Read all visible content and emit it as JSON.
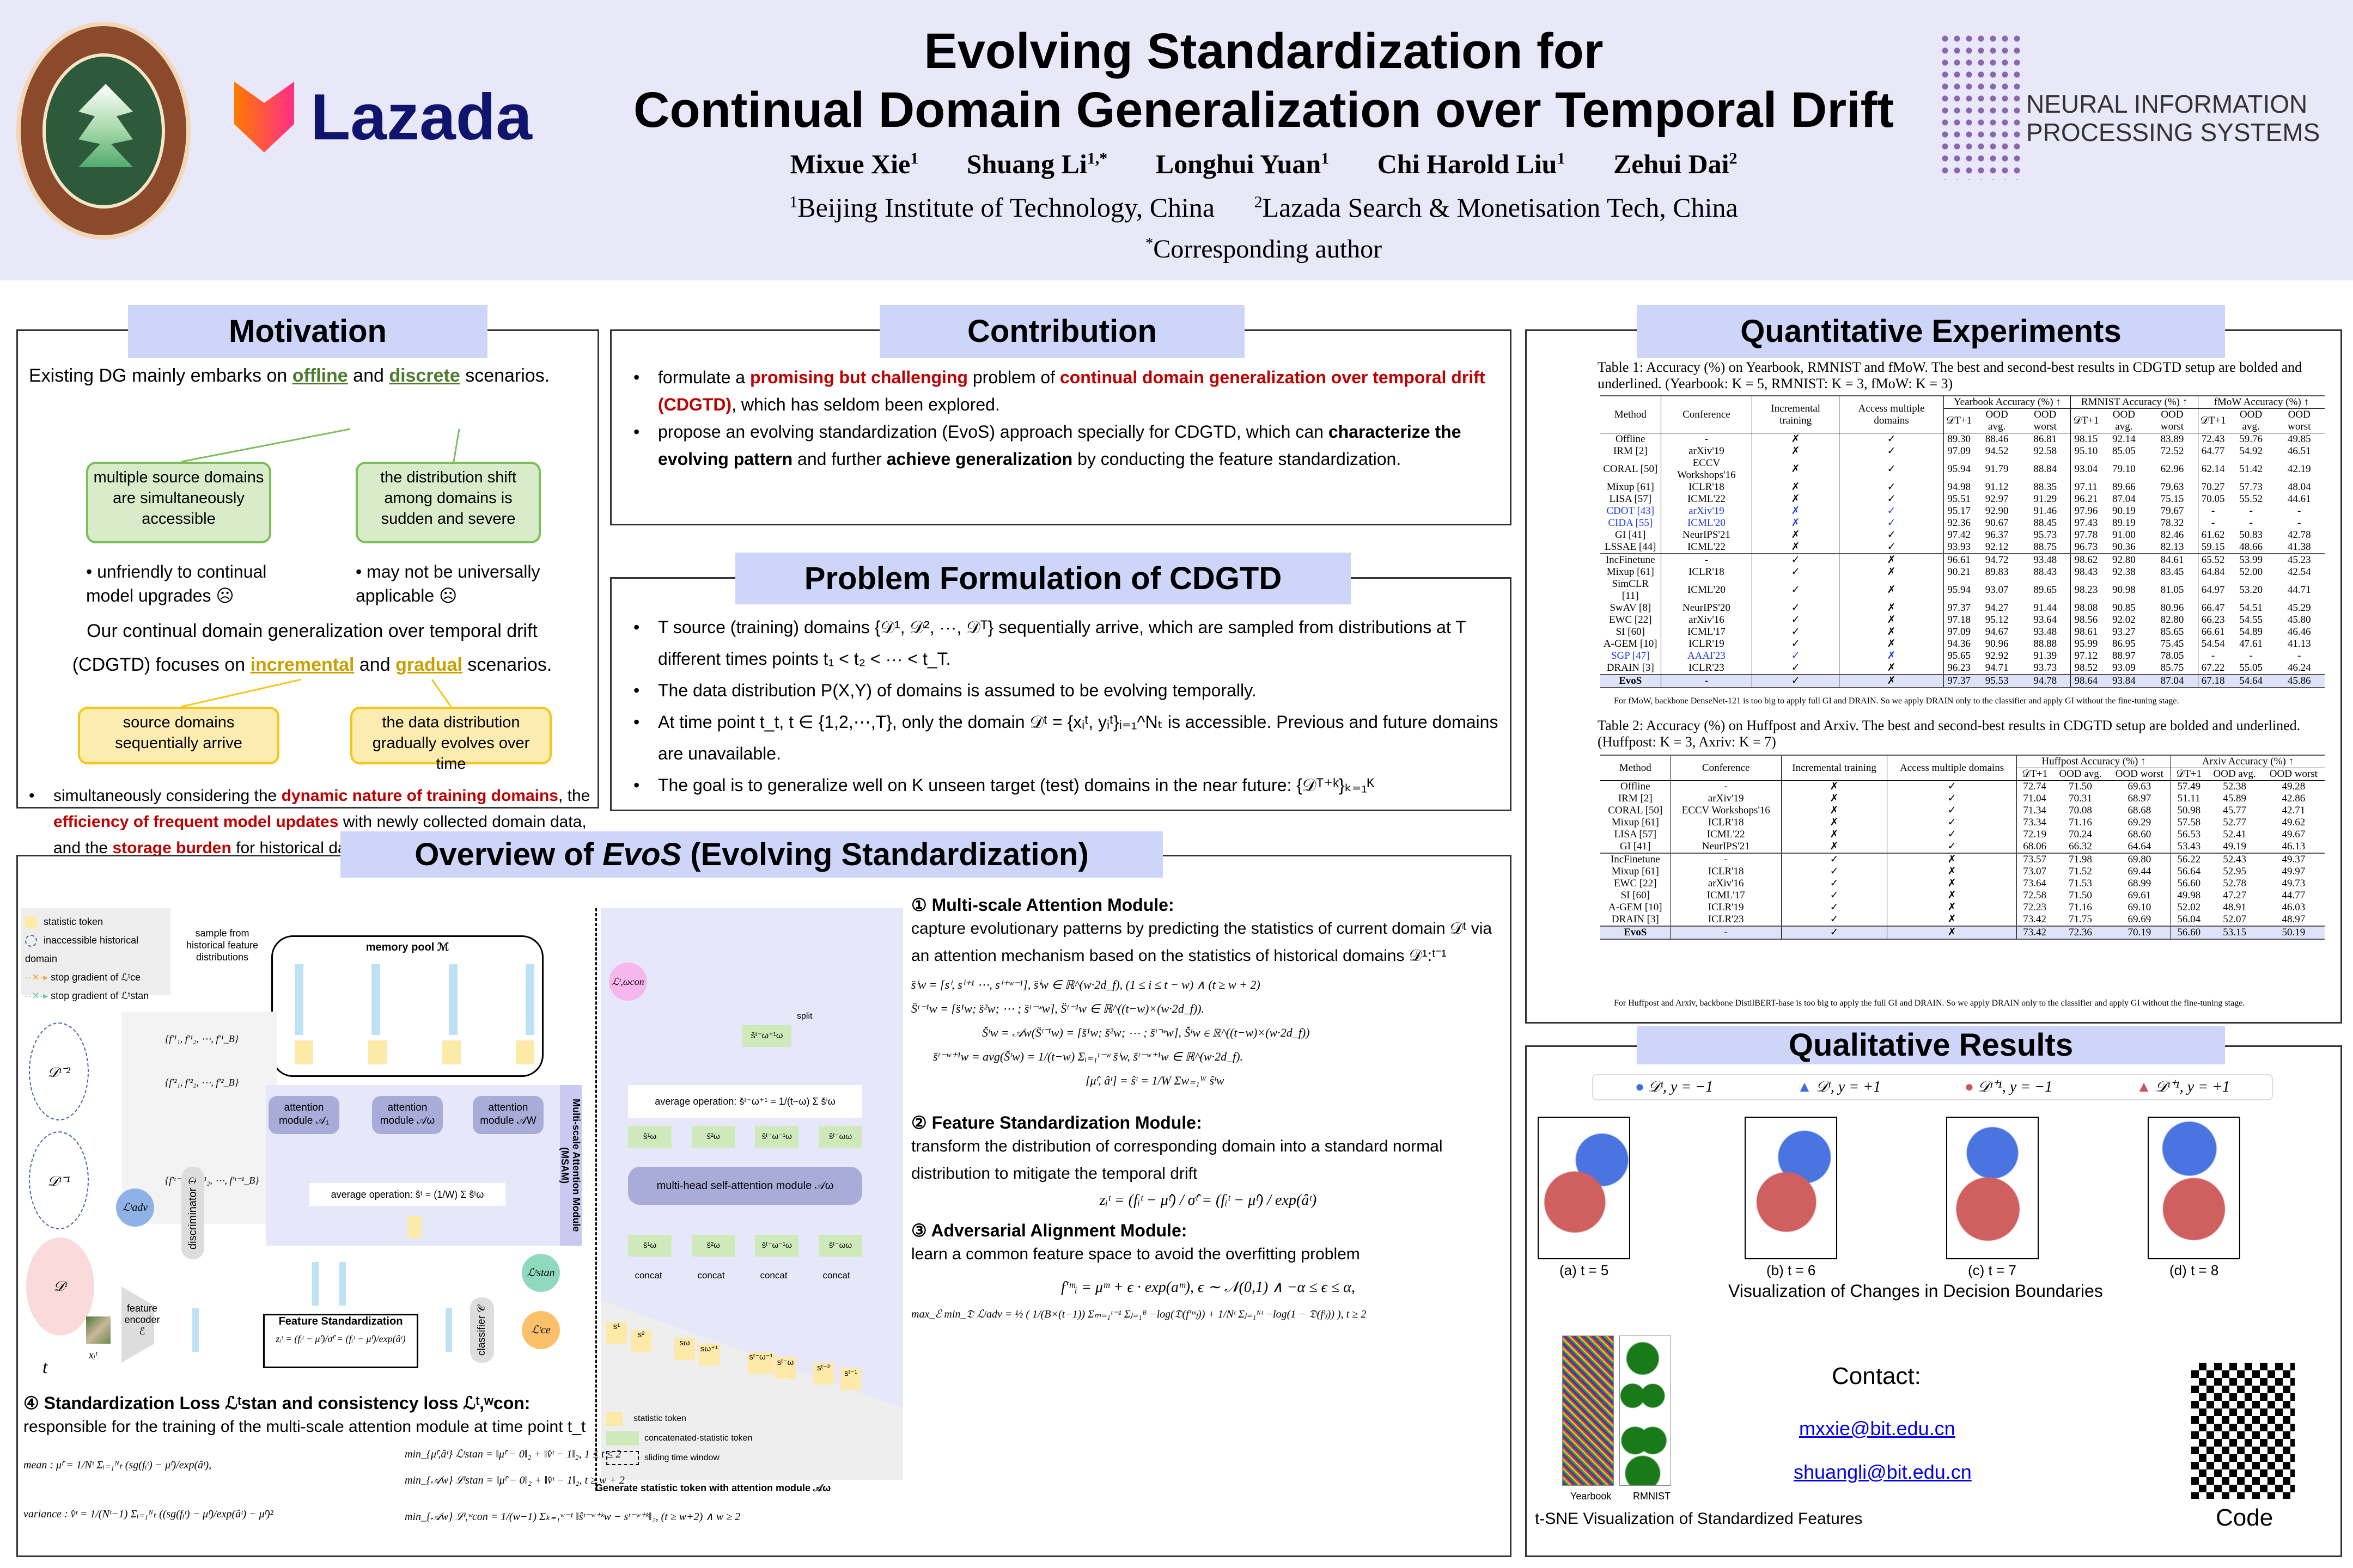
{
  "header": {
    "title_line1": "Evolving Standardization for",
    "title_line2": "Continual Domain Generalization over Temporal Drift",
    "authors": [
      "Mixue Xie",
      "Shuang Li",
      "Longhui Yuan",
      "Chi Harold Liu",
      "Zehui Dai"
    ],
    "author_sups": [
      "1",
      "1,*",
      "1",
      "1",
      "2"
    ],
    "affiliations": [
      "Beijing Institute of Technology, China",
      "Lazada Search & Monetisation Tech, China"
    ],
    "affil_sups": [
      "1",
      "2"
    ],
    "corresponding": "Corresponding author",
    "logos": {
      "left": "Beijing Institute of Technology",
      "lazada": "Lazada",
      "right": "NEURAL INFORMATION PROCESSING SYSTEMS"
    },
    "logo_year": "1940"
  },
  "motivation": {
    "title": "Motivation",
    "intro_pre": "Existing DG mainly embarks on ",
    "offline": "offline",
    "and": " and ",
    "discrete": "discrete",
    "intro_post": " scenarios.",
    "green_box1": "multiple source domains are simultaneously accessible",
    "green_box2": "the distribution shift among domains is sudden and severe",
    "con1": "• unfriendly to continual model upgrades ☹",
    "con2": "• may not be universally applicable ☹",
    "ours_pre": "Our continual domain generalization over temporal drift (CDGTD) focuses on ",
    "incremental": "incremental",
    "gradual": "gradual",
    "ours_post": " scenarios.",
    "yellow_box1": "source domains sequentially arrive",
    "yellow_box2": "the data distribution gradually evolves over time",
    "bullet_pre": "simultaneously considering the ",
    "bullet_r1": "dynamic nature of training domains",
    "bullet_m1": ", the ",
    "bullet_r2": "efficiency of frequent model updates",
    "bullet_m2": " with newly collected domain data, and the ",
    "bullet_r3": "storage burden",
    "bullet_post": " for historical data"
  },
  "contribution": {
    "title": "Contribution",
    "b1_pre": "formulate a ",
    "b1_r1": "promising but challenging",
    "b1_mid": " problem of ",
    "b1_r2": "continual domain generalization over temporal drift (CDGTD)",
    "b1_post": ", which has seldom been explored.",
    "b2_pre": "propose an evolving standardization (EvoS) approach specially for CDGTD, which can ",
    "b2_b1": "characterize the evolving pattern",
    "b2_mid": " and further ",
    "b2_b2": "achieve generalization",
    "b2_post": " by conducting the feature standardization."
  },
  "problem": {
    "title": "Problem Formulation of CDGTD",
    "bullets": [
      "T source (training) domains {𝒟¹, 𝒟², ⋯, 𝒟ᵀ} sequentially arrive, which are sampled from distributions at T different times points t₁ < t₂ < ⋯ < t_T.",
      "The data distribution P(X,Y) of domains is assumed to be evolving temporally.",
      "At time point t_t, t ∈ {1,2,⋯,T}, only the domain 𝒟ᵗ = {xᵢᵗ, yᵢᵗ}ᵢ₌₁^Nₜ is accessible. Previous and future domains are unavailable.",
      "The goal is to generalize well on K unseen target (test) domains in the near future: {𝒟ᵀ⁺ᵏ}ₖ₌₁ᴷ"
    ]
  },
  "overview": {
    "title_pre": "Overview of ",
    "title_em": "EvoS",
    "title_post": " (Evolving Standardization)",
    "legend": [
      "statistic token",
      "inaccessible historical domain",
      "stop gradient of ℒᵗce",
      "stop gradient of ℒᵗstan"
    ],
    "memory_pool": "memory pool ℳ",
    "sample_label": "sample from historical feature distributions",
    "feature_sets": [
      "{f′¹₁, f′¹₂, ⋯, f′¹_B}",
      "{f′²₁, f′²₂, ⋯, f′²_B}",
      "{f′ᵗ⁻¹₁, f′ᵗ⁻¹₂, ⋯, f′ᵗ⁻¹_B}"
    ],
    "tokens": [
      "s¹",
      "s²",
      "sᵗ⁻ʷ⁺¹",
      "sᵗ⁻¹"
    ],
    "attention_modules": [
      "attention module 𝒜₁",
      "attention module 𝒜ω",
      "attention module 𝒜W"
    ],
    "avg_op_main": "average operation: ŝᵗ = (1/W) Σ ŝᵗω",
    "msam_label": "Multi-scale Attention Module (MSAM)",
    "domains": [
      "𝒟ᵗ⁻²",
      "𝒟ᵗ⁻¹",
      "𝒟ᵗ"
    ],
    "time_axis": "t",
    "input": "xᵢᵗ",
    "encoder": "feature encoder ℰ",
    "feature": "fᵢᵗ",
    "discriminator": "discriminator 𝔇",
    "l_adv": "ℒᵗadv",
    "mu_hat": "μ̂ᵗ",
    "a_hat": "âᵗ",
    "fs_title": "Feature Standardization",
    "fs_eq": "zᵢᵗ = (fᵢᵗ − μ̂ᵗ)/σ̂ᵗ = (fᵢᵗ − μ̂ᵗ)/exp(âᵗ)",
    "z": "zᵢᵗ",
    "classifier": "classifier 𝒞",
    "l_stan": "ℒᵗstan",
    "l_ce": "ℒᵗce",
    "l_con": "ℒᵗ,ωcon",
    "right_diagram": {
      "split": "split",
      "avg_op": "average operation: s̆ᵗ⁻ω⁺¹ = 1/(t−ω) Σ s̆ⁱω",
      "mhsa": "multi-head self-attention module 𝒜ω",
      "concat": "concat",
      "green_tokens_top": [
        "s̆¹ω",
        "s̆²ω",
        "s̆ᵗ⁻ω⁻¹ω",
        "s̆ᵗ⁻ωω"
      ],
      "green_tokens_bottom": [
        "s̈¹ω",
        "s̈²ω",
        "s̈ᵗ⁻ω⁻¹ω",
        "s̈ᵗ⁻ωω"
      ],
      "out_token": "s̆ᵗ⁻ω⁺¹ω",
      "seq_tokens": [
        "s¹",
        "s²",
        "sω",
        "sω⁺¹",
        "sᵗ⁻ω⁻¹",
        "sᵗ⁻ω",
        "sᵗ⁻²",
        "sᵗ⁻¹"
      ],
      "legend": [
        "statistic token",
        "concatenated-statistic token",
        "sliding time window"
      ],
      "caption": "Generate statistic token with attention module 𝒜ω"
    }
  },
  "methods": {
    "m1_title": "① Multi-scale Attention Module:",
    "m1_text": "capture evolutionary patterns by predicting the statistics of current domain 𝒟ᵗ via an attention mechanism based on the statistics of historical domains 𝒟¹:ᵗ⁻¹",
    "m1_eqs": [
      "s̈ⁱw = [sⁱ, sⁱ⁺¹ ⋯, sⁱ⁺ʷ⁻¹],   s̈ⁱw ∈ ℝ^(w·2d_f),   (1 ≤ i ≤ t − w) ∧ (t ≥ w + 2)",
      "S̈ᵗ⁻¹w = [s̈¹w; s̈²w; ⋯ ; s̈ᵗ⁻ʷw],   S̈ᵗ⁻¹w ∈ ℝ^((t−w)×(w·2d_f)).",
      "S̆ᵗw = 𝒜w(S̈ᵗ⁻¹w) = [s̆¹w; s̆²w; ⋯ ; s̆ᵗ⁻ʷw],   S̆ᵗw ∈ ℝ^((t−w)×(w·2d_f))",
      "s̆ᵗ⁻ʷ⁺¹w = avg(S̆ᵗw) = 1/(t−w) Σᵢ₌₁ᵗ⁻ʷ s̆ⁱw,   s̆ᵗ⁻ʷ⁺¹w ∈ ℝ^(w·2d_f).",
      "[μ̂ᵗ, âᵗ] = ŝᵗ = 1/W Σw₌₁ᵂ ŝᵗw"
    ],
    "m2_title": "② Feature Standardization Module:",
    "m2_text": "transform the distribution of corresponding domain into a standard normal distribution to mitigate the temporal drift",
    "m2_eq": "zᵢᵗ = (fᵢᵗ − μ̂ᵗ) / σ̂ᵗ = (fᵢᵗ − μ̂ᵗ) / exp(âᵗ)",
    "m3_title": "③ Adversarial Alignment Module:",
    "m3_text": "learn a common feature space to avoid the overfitting problem",
    "m3_eq1": "f′ᵐᵢ = μᵐ + ϵ · exp(aᵐ),   ϵ ∼ 𝒩(0,1) ∧ −α ≤ ϵ ≤ α,",
    "m3_eq2": "max_ℰ min_𝔇 ℒᵗadv = ½ ( 1/(B×(t−1)) Σₘ₌₁ᵗ⁻¹ Σⱼ₌₁ᴮ −log(𝔇(f′ᵐⱼ)) + 1/Nᵗ Σⱼ₌₁ᴺᵗ −log(1 − 𝔇(fᵗⱼ)) ),   t ≥ 2",
    "m4_title": "④ Standardization Loss ℒᵗstan and consistency loss ℒᵗ,ʷcon:",
    "m4_text": "responsible for the training of the multi-scale attention module at time point t_t",
    "m4_mean": "mean : μ̂ᵗ = 1/Nᵗ Σᵢ₌₁ᴺₜ (sg(fᵢᵗ) − μ̂ᵗ)/exp(âᵗ),",
    "m4_var": "variance : v̂ᵗ = 1/(Nᵗ−1) Σᵢ₌₁ᴺₜ ((sg(fᵢᵗ) − μ̂ᵗ)/exp(âᵗ) − μ̂ᵗ)²",
    "m4_stan1": "min_{μ̂ᵗ,âᵗ} ℒᵗstan = ‖μ̂ᵗ − 0‖₂ + ‖v̂ᵗ − 1‖₂,   1 ≤ t ≤ 2",
    "m4_stan2": "min_{𝒜w} ℒᵗstan = ‖μ̂ᵗ − 0‖₂ + ‖v̂ᵗ − 1‖₂,   t ≥ w + 2",
    "m4_con": "min_{𝒜w} ℒᵗ,ʷcon = 1/(w−1) Σₖ₌₁ʷ⁻¹ ‖ŝᵗ⁻ʷ⁺ᵏw − sᵗ⁻ʷ⁺ᵏ‖₂,   (t ≥ w+2) ∧ w ≥ 2"
  },
  "quantitative": {
    "title": "Quantitative Experiments",
    "table1": {
      "caption": "Table 1: Accuracy (%) on Yearbook, RMNIST and fMoW. The best and second-best results in CDGTD setup are bolded and underlined. (Yearbook: K = 5, RMNIST: K = 3, fMoW: K = 3)",
      "headers": {
        "method": "Method",
        "conf": "Conference",
        "inc": "Incremental training",
        "acc": "Access multiple domains",
        "groups": [
          "Yearbook Accuracy (%) ↑",
          "RMNIST Accuracy (%) ↑",
          "fMoW Accuracy (%) ↑"
        ],
        "sub": [
          "𝒟T+1",
          "OOD avg.",
          "OOD worst"
        ]
      },
      "rows": [
        [
          "Offline",
          "-",
          "✗",
          "✓",
          "89.30",
          "88.46",
          "86.81",
          "98.15",
          "92.14",
          "83.89",
          "72.43",
          "59.76",
          "49.85"
        ],
        [
          "IRM [2]",
          "arXiv'19",
          "✗",
          "✓",
          "97.09",
          "94.52",
          "92.58",
          "95.10",
          "85.05",
          "72.52",
          "64.77",
          "54.92",
          "46.51"
        ],
        [
          "CORAL [50]",
          "ECCV Workshops'16",
          "✗",
          "✓",
          "95.94",
          "91.79",
          "88.84",
          "93.04",
          "79.10",
          "62.96",
          "62.14",
          "51.42",
          "42.19"
        ],
        [
          "Mixup [61]",
          "ICLR'18",
          "✗",
          "✓",
          "94.98",
          "91.12",
          "88.35",
          "97.11",
          "89.66",
          "79.63",
          "70.27",
          "57.73",
          "48.04"
        ],
        [
          "LISA [57]",
          "ICML'22",
          "✗",
          "✓",
          "95.51",
          "92.97",
          "91.29",
          "96.21",
          "87.04",
          "75.15",
          "70.05",
          "55.52",
          "44.61"
        ],
        [
          "CDOT [43]",
          "arXiv'19",
          "✗",
          "✓",
          "95.17",
          "92.90",
          "91.46",
          "97.96",
          "90.19",
          "79.67",
          "-",
          "-",
          "-"
        ],
        [
          "CIDA [55]",
          "ICML'20",
          "✗",
          "✓",
          "92.36",
          "90.67",
          "88.45",
          "97.43",
          "89.19",
          "78.32",
          "-",
          "-",
          "-"
        ],
        [
          "GI [41]",
          "NeurIPS'21",
          "✗",
          "✓",
          "97.42",
          "96.37",
          "95.73",
          "97.78",
          "91.00",
          "82.46",
          "61.62",
          "50.83",
          "42.78"
        ],
        [
          "LSSAE [44]",
          "ICML'22",
          "✗",
          "✓",
          "93.93",
          "92.12",
          "88.75",
          "96.73",
          "90.36",
          "82.13",
          "59.15",
          "48.66",
          "41.38"
        ],
        [
          "IncFinetune",
          "-",
          "✓",
          "✗",
          "96.61",
          "94.72",
          "93.48",
          "98.62",
          "92.80",
          "84.61",
          "65.52",
          "53.99",
          "45.23"
        ],
        [
          "Mixup [61]",
          "ICLR'18",
          "✓",
          "✗",
          "90.21",
          "89.83",
          "88.43",
          "98.43",
          "92.38",
          "83.45",
          "64.84",
          "52.00",
          "42.54"
        ],
        [
          "SimCLR [11]",
          "ICML'20",
          "✓",
          "✗",
          "95.94",
          "93.07",
          "89.65",
          "98.23",
          "90.98",
          "81.05",
          "64.97",
          "53.20",
          "44.71"
        ],
        [
          "SwAV [8]",
          "NeurIPS'20",
          "✓",
          "✗",
          "97.37",
          "94.27",
          "91.44",
          "98.08",
          "90.85",
          "80.96",
          "66.47",
          "54.51",
          "45.29"
        ],
        [
          "EWC [22]",
          "arXiv'16",
          "✓",
          "✗",
          "97.18",
          "95.12",
          "93.64",
          "98.56",
          "92.02",
          "82.80",
          "66.23",
          "54.55",
          "45.80"
        ],
        [
          "SI [60]",
          "ICML'17",
          "✓",
          "✗",
          "97.09",
          "94.67",
          "93.48",
          "98.61",
          "93.27",
          "85.65",
          "66.61",
          "54.89",
          "46.46"
        ],
        [
          "A-GEM [10]",
          "ICLR'19",
          "✓",
          "✗",
          "94.36",
          "90.96",
          "88.88",
          "95.99",
          "86.95",
          "75.45",
          "54.54",
          "47.61",
          "41.13"
        ],
        [
          "SGP [47]",
          "AAAI'23",
          "✓",
          "✗",
          "95.65",
          "92.92",
          "91.39",
          "97.12",
          "88.97",
          "78.05",
          "-",
          "-",
          "-"
        ],
        [
          "DRAIN [3]",
          "ICLR'23",
          "✓",
          "✗",
          "96.23",
          "94.71",
          "93.73",
          "98.52",
          "93.09",
          "85.75",
          "67.22",
          "55.05",
          "46.24"
        ],
        [
          "EvoS",
          "-",
          "✓",
          "✗",
          "97.37",
          "95.53",
          "94.78",
          "98.64",
          "93.84",
          "87.04",
          "67.18",
          "54.64",
          "45.86"
        ]
      ],
      "note": "For fMoW, backbone DenseNet-121 is too big to apply full GI and DRAIN. So we apply DRAIN only to the classifier and apply GI without the fine-tuning stage."
    },
    "table2": {
      "caption": "Table 2: Accuracy (%) on Huffpost and Arxiv. The best and second-best results in CDGTD setup are bolded and underlined. (Huffpost: K = 3, Axriv: K = 7)",
      "headers": {
        "method": "Method",
        "conf": "Conference",
        "inc": "Incremental training",
        "acc": "Access multiple domains",
        "groups": [
          "Huffpost Accuracy (%) ↑",
          "Arxiv Accuracy (%) ↑"
        ],
        "sub": [
          "𝒟T+1",
          "OOD avg.",
          "OOD worst"
        ]
      },
      "rows": [
        [
          "Offline",
          "-",
          "✗",
          "✓",
          "72.74",
          "71.50",
          "69.63",
          "57.49",
          "52.38",
          "49.28"
        ],
        [
          "IRM [2]",
          "arXiv'19",
          "✗",
          "✓",
          "71.04",
          "70.31",
          "68.97",
          "51.11",
          "45.89",
          "42.86"
        ],
        [
          "CORAL [50]",
          "ECCV Workshops'16",
          "✗",
          "✓",
          "71.34",
          "70.08",
          "68.68",
          "50.98",
          "45.77",
          "42.71"
        ],
        [
          "Mixup [61]",
          "ICLR'18",
          "✗",
          "✓",
          "73.34",
          "71.16",
          "69.29",
          "57.58",
          "52.77",
          "49.62"
        ],
        [
          "LISA [57]",
          "ICML'22",
          "✗",
          "✓",
          "72.19",
          "70.24",
          "68.60",
          "56.53",
          "52.41",
          "49.67"
        ],
        [
          "GI [41]",
          "NeurIPS'21",
          "✗",
          "✓",
          "68.06",
          "66.32",
          "64.64",
          "53.43",
          "49.19",
          "46.13"
        ],
        [
          "IncFinetune",
          "-",
          "✓",
          "✗",
          "73.57",
          "71.98",
          "69.80",
          "56.22",
          "52.43",
          "49.37"
        ],
        [
          "Mixup [61]",
          "ICLR'18",
          "✓",
          "✗",
          "73.07",
          "71.52",
          "69.44",
          "56.64",
          "52.95",
          "49.97"
        ],
        [
          "EWC [22]",
          "arXiv'16",
          "✓",
          "✗",
          "73.64",
          "71.53",
          "68.99",
          "56.60",
          "52.78",
          "49.73"
        ],
        [
          "SI [60]",
          "ICML'17",
          "✓",
          "✗",
          "72.58",
          "71.50",
          "69.61",
          "49.98",
          "47.27",
          "44.77"
        ],
        [
          "A-GEM [10]",
          "ICLR'19",
          "✓",
          "✗",
          "72.23",
          "71.16",
          "69.10",
          "52.02",
          "48.91",
          "46.03"
        ],
        [
          "DRAIN [3]",
          "ICLR'23",
          "✓",
          "✗",
          "73.42",
          "71.75",
          "69.69",
          "56.04",
          "52.07",
          "48.97"
        ],
        [
          "EvoS",
          "-",
          "✓",
          "✗",
          "73.42",
          "72.36",
          "70.19",
          "56.60",
          "53.15",
          "50.19"
        ]
      ],
      "note": "For Huffpost and Arxiv, backbone DistilBERT-base is too big to apply the full GI and DRAIN. So we apply DRAIN only to the classifier and apply GI without the fine-tuning stage."
    }
  },
  "qualitative": {
    "title": "Qualitative Results",
    "legend": [
      "𝒟ᵗ, y = −1",
      "𝒟ᵗ, y = +1",
      "𝒟ᵗ⁺¹, y = −1",
      "𝒟ᵗ⁺¹, y = +1"
    ],
    "legend_colors": [
      "#3b6fe0",
      "#3b6fe0",
      "#cc5555",
      "#cc5555"
    ],
    "subplots": [
      "(a) t = 5",
      "(b) t = 6",
      "(c) t = 7",
      "(d) t = 8"
    ],
    "boundaries_caption": "Visualization of Changes in Decision Boundaries",
    "tsne_labels": [
      "Yearbook",
      "RMNIST"
    ],
    "tsne_caption": "t-SNE Visualization of Standardized Features",
    "contact_label": "Contact:",
    "emails": [
      "mxxie@bit.edu.cn",
      "shuangli@bit.edu.cn"
    ],
    "code_label": "Code"
  }
}
